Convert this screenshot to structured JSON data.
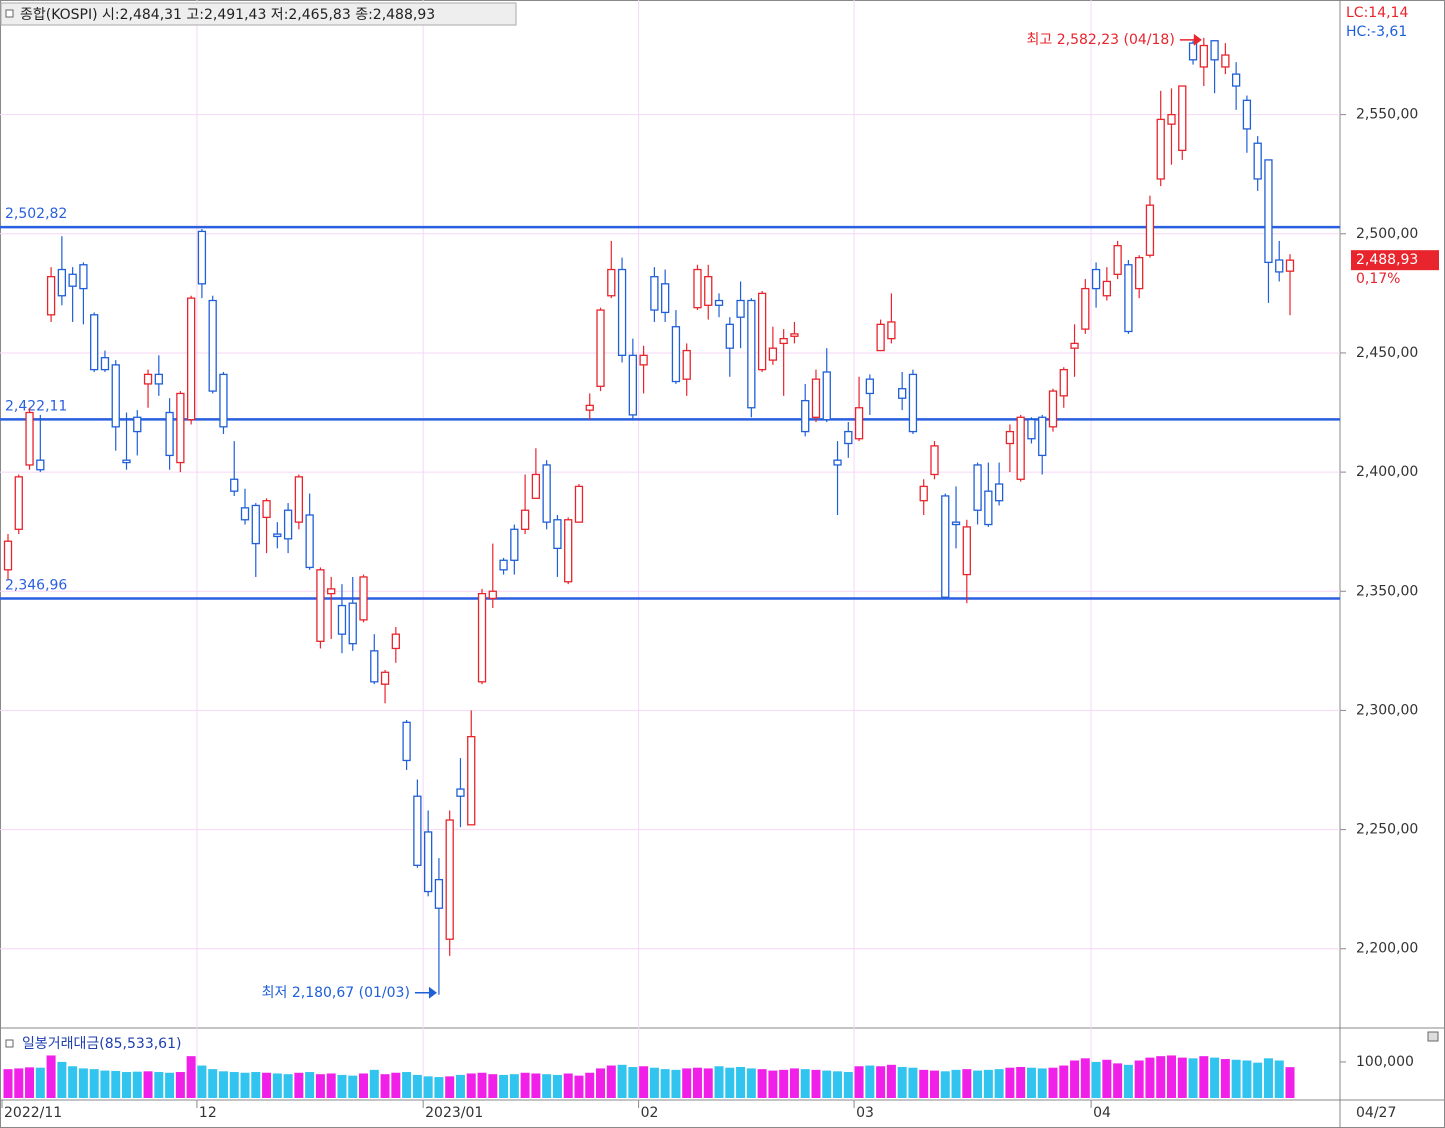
{
  "chart_data": {
    "type": "candlestick",
    "title": "종합(KOSPI) 시:2,484,31 고:2,491,43 저:2,465,83 종:2,488,93",
    "lc_label": "LC:14,14",
    "hc_label": "HC:-3,61",
    "up_color": "#e8242c",
    "down_color": "#1f5fd8",
    "grid": true,
    "categories": [
      "2022/11",
      null,
      null,
      null,
      null,
      null,
      null,
      null,
      null,
      null,
      null,
      null,
      null,
      null,
      null,
      null,
      null,
      null,
      "12",
      null,
      null,
      null,
      null,
      null,
      null,
      null,
      null,
      null,
      null,
      null,
      null,
      null,
      null,
      null,
      null,
      null,
      null,
      null,
      null,
      "2023/01",
      null,
      null,
      null,
      null,
      null,
      null,
      null,
      null,
      null,
      null,
      null,
      null,
      null,
      null,
      null,
      null,
      null,
      null,
      null,
      "02",
      null,
      null,
      null,
      null,
      null,
      null,
      null,
      null,
      null,
      null,
      null,
      null,
      null,
      null,
      null,
      null,
      null,
      null,
      null,
      "03",
      null,
      null,
      null,
      null,
      null,
      null,
      null,
      null,
      null,
      null,
      null,
      null,
      null,
      null,
      null,
      null,
      null,
      null,
      null,
      null,
      null,
      "04",
      null,
      null,
      null,
      null,
      null,
      null,
      null,
      null,
      null,
      null,
      null,
      null,
      null,
      null,
      null,
      null,
      null,
      null
    ],
    "x_end_label": "04/27",
    "candles": [
      [
        2359,
        2374,
        2355,
        2371
      ],
      [
        2376,
        2399,
        2374,
        2398
      ],
      [
        2403,
        2427,
        2401,
        2425
      ],
      [
        2405,
        2424,
        2400,
        2401
      ],
      [
        2466,
        2486,
        2463,
        2482
      ],
      [
        2485,
        2499,
        2470,
        2474
      ],
      [
        2483,
        2486,
        2463,
        2478
      ],
      [
        2487,
        2488,
        2462,
        2477
      ],
      [
        2466,
        2467,
        2442,
        2443
      ],
      [
        2448,
        2451,
        2442,
        2443
      ],
      [
        2445,
        2447,
        2409,
        2419
      ],
      [
        2405,
        2425,
        2401,
        2404
      ],
      [
        2423,
        2426,
        2407,
        2417
      ],
      [
        2437,
        2443,
        2427,
        2441
      ],
      [
        2441,
        2449,
        2432,
        2437
      ],
      [
        2425,
        2431,
        2401,
        2407
      ],
      [
        2404,
        2434,
        2400,
        2433
      ],
      [
        2422,
        2474,
        2420,
        2473
      ],
      [
        2501,
        2502,
        2473,
        2479
      ],
      [
        2472,
        2474,
        2433,
        2434
      ],
      [
        2441,
        2442,
        2416,
        2419
      ],
      [
        2397,
        2413,
        2390,
        2392
      ],
      [
        2385,
        2393,
        2378,
        2380
      ],
      [
        2386,
        2387,
        2356,
        2370
      ],
      [
        2381,
        2389,
        2366,
        2388
      ],
      [
        2374,
        2379,
        2368,
        2373
      ],
      [
        2384,
        2387,
        2366,
        2372
      ],
      [
        2379,
        2399,
        2376,
        2398
      ],
      [
        2382,
        2391,
        2359,
        2360
      ],
      [
        2329,
        2360,
        2326,
        2359
      ],
      [
        2349,
        2356,
        2330,
        2351
      ],
      [
        2344,
        2353,
        2324,
        2332
      ],
      [
        2345,
        2356,
        2325,
        2328
      ],
      [
        2338,
        2357,
        2337,
        2356
      ],
      [
        2325,
        2332,
        2311,
        2312
      ],
      [
        2311,
        2317,
        2303,
        2316
      ],
      [
        2326,
        2335,
        2320,
        2332
      ],
      [
        2295,
        2296,
        2275,
        2279
      ],
      [
        2264,
        2271,
        2234,
        2235
      ],
      [
        2249,
        2258,
        2222,
        2224
      ],
      [
        2229,
        2238,
        2180.67,
        2217
      ],
      [
        2204,
        2258,
        2197,
        2254
      ],
      [
        2267,
        2280,
        2251,
        2264
      ],
      [
        2252,
        2300,
        2252,
        2289
      ],
      [
        2312,
        2351,
        2311,
        2349
      ],
      [
        2347,
        2370,
        2343,
        2350
      ],
      [
        2363,
        2364,
        2357,
        2359
      ],
      [
        2376,
        2378,
        2357,
        2363
      ],
      [
        2376,
        2399,
        2374,
        2384
      ],
      [
        2389,
        2410,
        2389,
        2399
      ],
      [
        2403,
        2405,
        2376,
        2379
      ],
      [
        2380,
        2382,
        2356,
        2368
      ],
      [
        2354,
        2381,
        2353,
        2380
      ],
      [
        2379,
        2395,
        2379,
        2394
      ],
      [
        2426,
        2433,
        2422,
        2428
      ],
      [
        2436,
        2469,
        2434,
        2468
      ],
      [
        2474,
        2497,
        2473,
        2485
      ],
      [
        2485,
        2490,
        2446,
        2449
      ],
      [
        2449,
        2456,
        2422,
        2424
      ],
      [
        2445,
        2453,
        2433,
        2449
      ],
      [
        2482,
        2486,
        2463,
        2468
      ],
      [
        2479,
        2485,
        2463,
        2467
      ],
      [
        2461,
        2468,
        2437,
        2438
      ],
      [
        2439,
        2454,
        2432,
        2451
      ],
      [
        2469,
        2487,
        2468,
        2485
      ],
      [
        2470,
        2487,
        2464,
        2482
      ],
      [
        2472,
        2475,
        2465,
        2470
      ],
      [
        2462,
        2465,
        2440,
        2452
      ],
      [
        2472,
        2480,
        2452,
        2465
      ],
      [
        2472,
        2473,
        2423,
        2427
      ],
      [
        2443,
        2476,
        2442,
        2475
      ],
      [
        2447,
        2461,
        2445,
        2452
      ],
      [
        2454,
        2460,
        2432,
        2456
      ],
      [
        2457,
        2463,
        2454,
        2458
      ],
      [
        2430,
        2437,
        2415,
        2417
      ],
      [
        2423,
        2443,
        2421,
        2439
      ],
      [
        2442,
        2452,
        2421,
        2422
      ],
      [
        2405,
        2413,
        2382,
        2403
      ],
      [
        2417,
        2421,
        2406,
        2412
      ],
      [
        2414,
        2440,
        2413,
        2427
      ],
      [
        2439,
        2441,
        2424,
        2433
      ],
      [
        2451,
        2464,
        2451,
        2462
      ],
      [
        2456,
        2475,
        2454,
        2463
      ],
      [
        2435,
        2442,
        2426,
        2431
      ],
      [
        2441,
        2443,
        2416,
        2417
      ],
      [
        2388,
        2397,
        2382,
        2394
      ],
      [
        2399,
        2413,
        2397,
        2411
      ],
      [
        2390,
        2391,
        2347,
        2347.5
      ],
      [
        2379,
        2394,
        2368,
        2378
      ],
      [
        2357,
        2380,
        2345,
        2377
      ],
      [
        2403,
        2404,
        2378,
        2384
      ],
      [
        2392,
        2404,
        2377,
        2378
      ],
      [
        2395,
        2404,
        2386,
        2388
      ],
      [
        2412,
        2420,
        2400,
        2417
      ],
      [
        2397,
        2424,
        2396,
        2423
      ],
      [
        2422,
        2423,
        2412,
        2414
      ],
      [
        2423,
        2424,
        2399,
        2407
      ],
      [
        2419,
        2435,
        2417,
        2434
      ],
      [
        2432,
        2444,
        2427,
        2443
      ],
      [
        2452,
        2462,
        2440,
        2454
      ],
      [
        2460,
        2481,
        2458,
        2477
      ],
      [
        2485,
        2488,
        2469,
        2477
      ],
      [
        2474,
        2486,
        2472,
        2480
      ],
      [
        2483,
        2497,
        2481,
        2495
      ],
      [
        2487,
        2489,
        2458,
        2459
      ],
      [
        2477,
        2491,
        2473,
        2490
      ],
      [
        2491,
        2516,
        2490,
        2512
      ],
      [
        2523,
        2560,
        2520,
        2548
      ],
      [
        2546,
        2561,
        2529,
        2550
      ],
      [
        2535,
        2562,
        2531,
        2562
      ],
      [
        2580,
        2581,
        2571,
        2573
      ],
      [
        2570,
        2582.23,
        2562,
        2579
      ],
      [
        2581,
        2581,
        2559,
        2573
      ],
      [
        2570,
        2580,
        2567,
        2575
      ],
      [
        2567,
        2572,
        2552,
        2562
      ],
      [
        2556,
        2558,
        2534,
        2544
      ],
      [
        2538,
        2541,
        2518,
        2523
      ],
      [
        2531,
        2531,
        2471,
        2488
      ],
      [
        2489,
        2497,
        2480,
        2484
      ],
      [
        2484.31,
        2491.43,
        2465.83,
        2488.93
      ]
    ],
    "ylim": [
      2168,
      2596
    ],
    "yticks": [
      {
        "value": 2200,
        "label": "2,200,00"
      },
      {
        "value": 2250,
        "label": "2,250,00"
      },
      {
        "value": 2300,
        "label": "2,300,00"
      },
      {
        "value": 2350,
        "label": "2,350,00"
      },
      {
        "value": 2400,
        "label": "2,400,00"
      },
      {
        "value": 2450,
        "label": "2,450,00"
      },
      {
        "value": 2500,
        "label": "2,500,00"
      },
      {
        "value": 2550,
        "label": "2,550,00"
      }
    ],
    "last_price": {
      "value": 2488.93,
      "label": "2,488,93",
      "change": "0,17%"
    },
    "hlines": [
      {
        "value": 2502.82,
        "label": "2,502,82"
      },
      {
        "value": 2422.11,
        "label": "2,422,11"
      },
      {
        "value": 2346.96,
        "label": "2,346,96"
      }
    ],
    "annotations": [
      {
        "text": "최고 2,582,23 (04/18)",
        "value": 2582.23,
        "color": "#e8242c"
      },
      {
        "text": "최저 2,180,67 (01/03)",
        "value": 2180.67,
        "color": "#1f5fd8"
      }
    ],
    "hline_color": "#2a5fe0",
    "volume": {
      "title": "일봉거래대금(85,533,61)",
      "up_color": "#f020e8",
      "down_color": "#30c4ee",
      "ylim": [
        0,
        183000
      ],
      "yticks": [
        {
          "value": 100000,
          "label": "100,000"
        }
      ],
      "values": [
        80000,
        82000,
        85000,
        84000,
        118000,
        100000,
        88000,
        82000,
        80000,
        76000,
        75000,
        72000,
        73000,
        74000,
        72000,
        70000,
        72000,
        116000,
        90000,
        80000,
        74000,
        72000,
        70000,
        72000,
        70000,
        68000,
        66000,
        70000,
        72000,
        66000,
        68000,
        64000,
        62000,
        68000,
        78000,
        66000,
        70000,
        72000,
        64000,
        60000,
        58000,
        60000,
        64000,
        68000,
        70000,
        66000,
        64000,
        66000,
        70000,
        68000,
        66000,
        64000,
        68000,
        62000,
        70000,
        82000,
        90000,
        92000,
        86000,
        88000,
        84000,
        80000,
        78000,
        82000,
        84000,
        82000,
        88000,
        84000,
        86000,
        82000,
        80000,
        76000,
        78000,
        82000,
        80000,
        78000,
        76000,
        74000,
        72000,
        88000,
        90000,
        88000,
        92000,
        86000,
        84000,
        78000,
        76000,
        74000,
        78000,
        80000,
        76000,
        78000,
        80000,
        84000,
        86000,
        84000,
        82000,
        84000,
        90000,
        104000,
        110000,
        100000,
        106000,
        96000,
        92000,
        104000,
        112000,
        116000,
        118000,
        112000,
        110000,
        116000,
        112000,
        108000,
        106000,
        104000,
        98000,
        110000,
        104000,
        85533.61
      ]
    }
  }
}
